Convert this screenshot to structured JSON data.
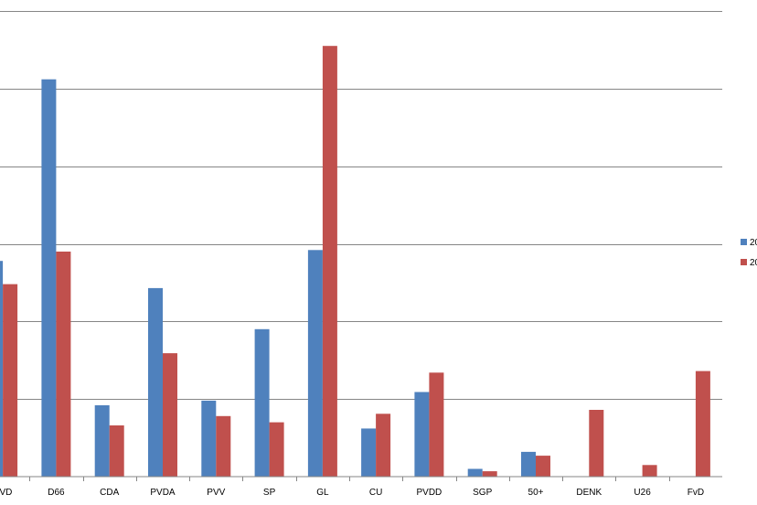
{
  "chart_data": {
    "type": "bar",
    "categories": [
      "VVD",
      "D66",
      "CDA",
      "PVDA",
      "PVV",
      "SP",
      "GL",
      "CU",
      "PVDD",
      "SGP",
      "50+",
      "DENK",
      "U26",
      "FvD"
    ],
    "series": [
      {
        "name": "20",
        "color": "#4f81bd",
        "values": [
          2.78,
          5.12,
          0.92,
          2.43,
          0.98,
          1.9,
          2.92,
          0.62,
          1.09,
          0.1,
          0.32,
          0.0,
          0.0,
          0.0
        ]
      },
      {
        "name": "20",
        "color": "#c0504d",
        "values": [
          2.48,
          2.9,
          0.66,
          1.59,
          0.78,
          0.7,
          5.55,
          0.81,
          1.34,
          0.07,
          0.27,
          0.86,
          0.15,
          1.36
        ]
      }
    ],
    "ylim": [
      0,
      6
    ],
    "gridlines": true,
    "legend_position": "right"
  }
}
